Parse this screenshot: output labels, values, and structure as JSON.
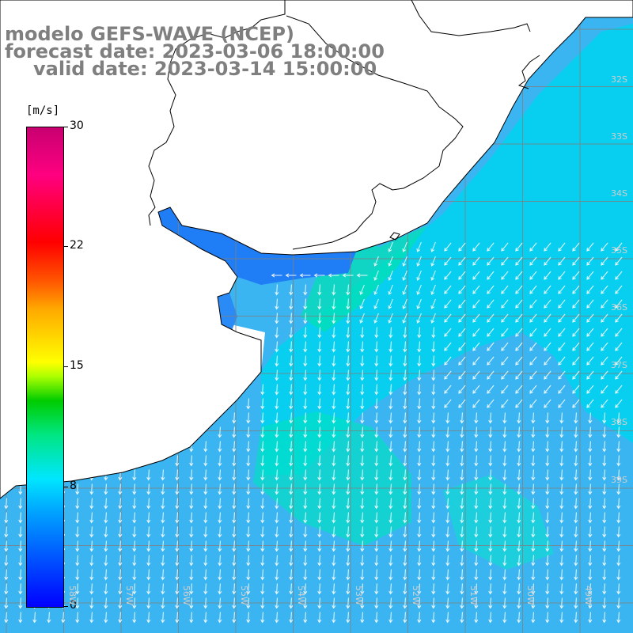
{
  "title": {
    "line1": "modelo GEFS-WAVE (NCEP)",
    "line2": "forecast date: 2023-03-06 18:00:00",
    "line3": "valid date: 2023-03-14 15:00:00"
  },
  "colorbar": {
    "unit": "[m/s]",
    "ticks": [
      "30",
      "22",
      "15",
      "8",
      "0"
    ],
    "colors": [
      "#0000ff",
      "#00a5ff",
      "#00e6ff",
      "#00e680",
      "#00cc00",
      "#ffff00",
      "#ff0000",
      "#c80070"
    ]
  },
  "map": {
    "variable": "wind speed and direction",
    "latitude_labels": [
      "32S",
      "33S",
      "34S",
      "35S",
      "36S",
      "37S",
      "38S",
      "39S"
    ],
    "longitude_labels": [
      "58W",
      "57W",
      "56W",
      "55W",
      "54W",
      "53W",
      "52W",
      "51W",
      "50W",
      "49W"
    ],
    "land_color": "#ffffff",
    "grid_color": "#808080"
  }
}
